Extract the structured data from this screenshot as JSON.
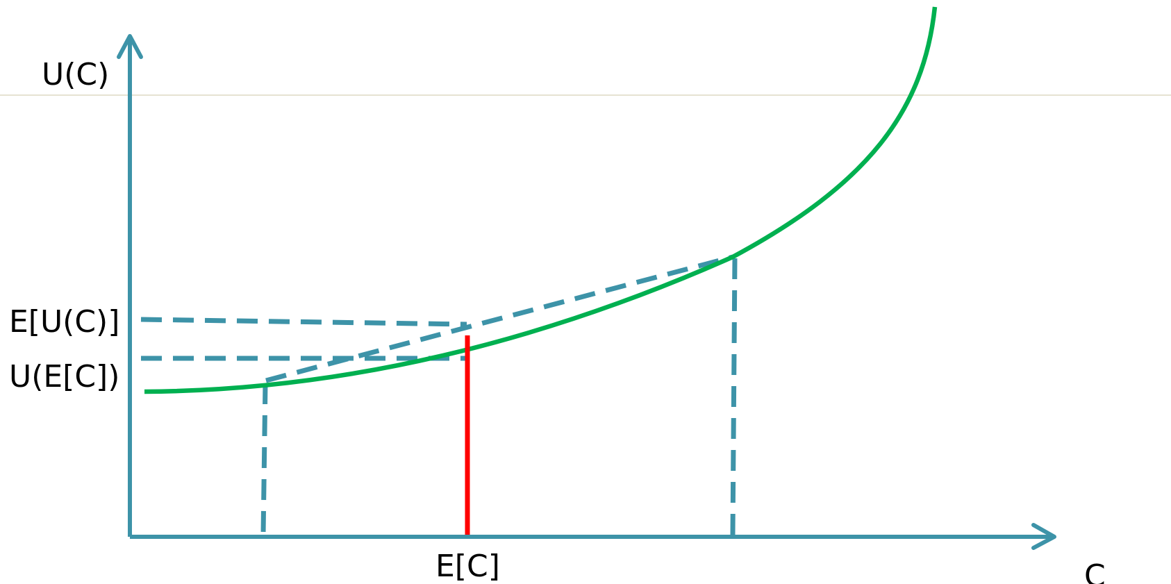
{
  "diagram": {
    "y_axis_label": "U(C)",
    "x_axis_label": "C",
    "expected_utility_label": "E[U(C)]",
    "utility_of_expectation_label": "U(E[C])",
    "expected_value_label": "E[C]"
  },
  "colors": {
    "axis": "#3d93a8",
    "utility_curve": "#00b050",
    "expected_value_marker": "#ff0000",
    "guide_dashes": "#3d93a8",
    "background_line": "#ddd9c3"
  }
}
